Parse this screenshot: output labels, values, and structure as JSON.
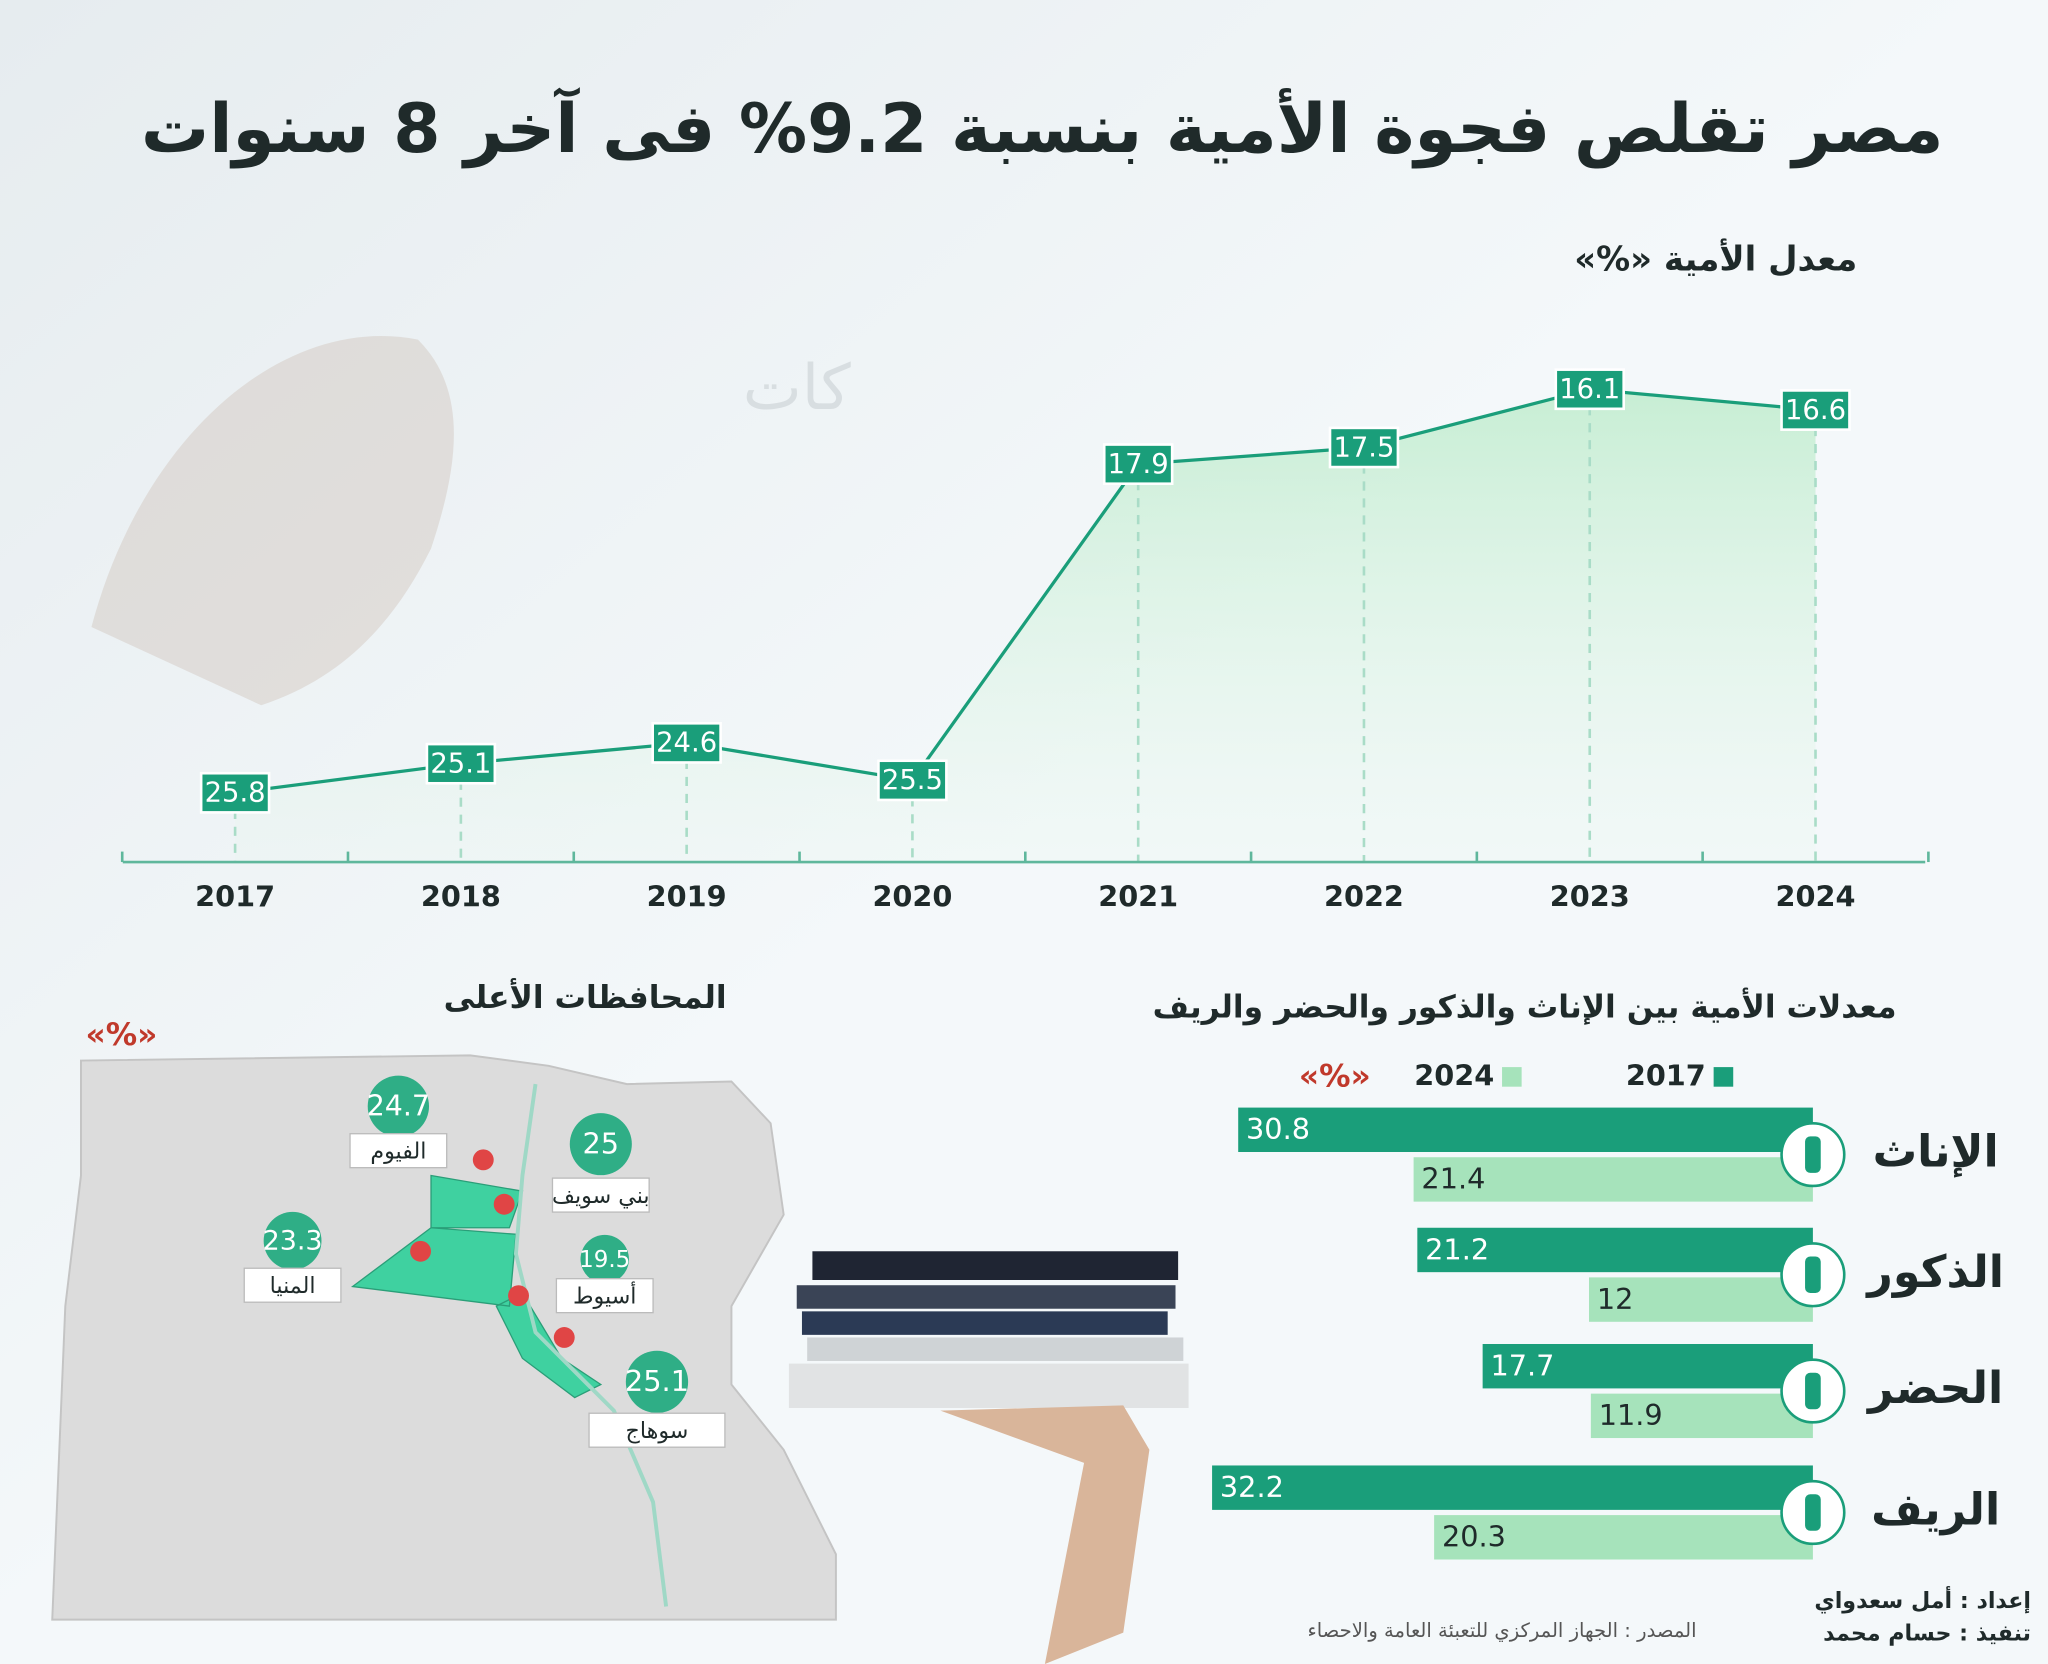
{
  "title": "مصر تقلص فجوة الأمية بنسبة 9.2% فى آخر 8 سنوات",
  "chart_data": [
    {
      "type": "line",
      "title": "معدل الأمية «%»",
      "categories": [
        "2017",
        "2018",
        "2019",
        "2020",
        "2021",
        "2022",
        "2023",
        "2024"
      ],
      "values": [
        25.8,
        25.1,
        24.6,
        25.5,
        17.9,
        17.5,
        16.1,
        16.6
      ],
      "color": "#1a9e7a"
    },
    {
      "type": "bar",
      "title": "معدلات الأمية بين الإناث والذكور والحضر والريف",
      "unit": "«%»",
      "categories": [
        "الإناث",
        "الذكور",
        "الحضر",
        "الريف"
      ],
      "series": [
        {
          "name": "2017",
          "color": "#1a9e7a",
          "values": [
            30.8,
            21.2,
            17.7,
            32.2
          ]
        },
        {
          "name": "2024",
          "color": "#a6e3bb",
          "values": [
            21.4,
            12,
            11.9,
            20.3
          ]
        }
      ]
    },
    {
      "type": "map",
      "title": "المحافظات الأعلى",
      "unit": "«%»",
      "categories": [
        "الفيوم",
        "بني سويف",
        "المنيا",
        "أسيوط",
        "سوهاج"
      ],
      "values": [
        24.7,
        25,
        23.3,
        19.5,
        25.1
      ],
      "color": "#2fae86"
    }
  ],
  "credits": {
    "prepared": "إعداد : أمل سعدواي",
    "executed": "تنفيذ : حسام محمد",
    "source": "المصدر : الجهاز المركزي للتعبئة العامة والاحصاء"
  }
}
